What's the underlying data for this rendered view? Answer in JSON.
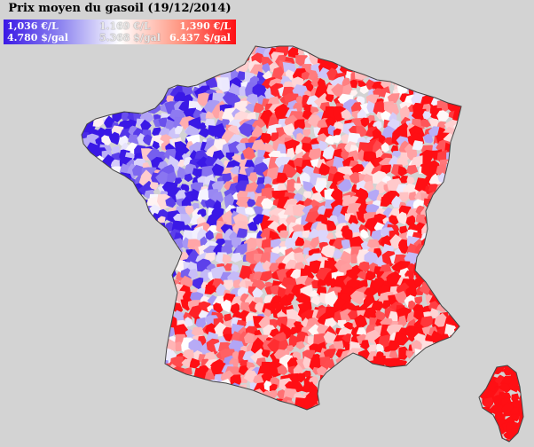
{
  "map": {
    "title": "Prix moyen du gasoil (19/12/2014)",
    "legend": {
      "min_eur": "1,036 €/L",
      "min_usd": "4.780 $/gal",
      "mid_eur": "1.169 €/L",
      "mid_usd": "5.368 $/gal",
      "max_eur": "1,390 €/L",
      "max_usd": "6.437 $/gal"
    },
    "colors": {
      "background": "#d3d3d3",
      "low": "#3a18e6",
      "mid": "#ffffff",
      "high": "#ff0f14"
    },
    "regions": [
      "France (mainland)",
      "Corsica"
    ]
  }
}
